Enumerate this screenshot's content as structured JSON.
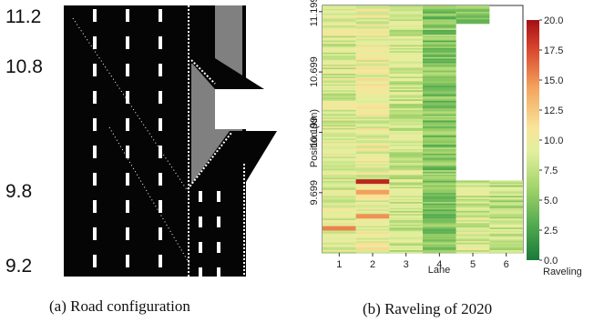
{
  "panel_a": {
    "caption": "(a) Road configuration",
    "y_labels": [
      {
        "text": "11.2",
        "km": 11.2
      },
      {
        "text": "10.8",
        "km": 10.8
      },
      {
        "text": "9.8",
        "km": 9.8
      },
      {
        "text": "9.2",
        "km": 9.2
      }
    ]
  },
  "panel_b": {
    "caption": "(b) Raveling of 2020"
  },
  "colors": {
    "road": "#050505",
    "shoulder": "#808080",
    "marking": "#ffffff",
    "colormap": [
      "#1a7a3a",
      "#4ea84f",
      "#a2d36a",
      "#e2ef9e",
      "#f8e59a",
      "#f3a35c",
      "#d9452e",
      "#a50f15"
    ]
  },
  "chart_data": {
    "type": "heatmap",
    "title": "",
    "xlabel": "Lane",
    "ylabel": "Position (km)",
    "x_categories": [
      "1",
      "2",
      "3",
      "4",
      "5",
      "6"
    ],
    "y_ticks": [
      "11.199",
      "10.699",
      "10.199",
      "9.699"
    ],
    "y_tick_values": [
      11.199,
      10.699,
      10.199,
      9.699
    ],
    "ylim": [
      9.2,
      11.25
    ],
    "colorbar": {
      "label": "Raveling",
      "ticks": [
        "20.0",
        "17.5",
        "15.0",
        "12.5",
        "10.0",
        "7.5",
        "5.0",
        "2.5",
        "0.0"
      ],
      "range": [
        0,
        20
      ]
    },
    "lanes": [
      {
        "lane": "1",
        "from_km": 9.2,
        "to_km": 11.25,
        "mean": 8.6
      },
      {
        "lane": "2",
        "from_km": 9.2,
        "to_km": 11.25,
        "mean": 9.4
      },
      {
        "lane": "3",
        "from_km": 9.2,
        "to_km": 11.25,
        "mean": 8.0
      },
      {
        "lane": "4",
        "from_km": 9.2,
        "to_km": 11.25,
        "mean": 5.0
      },
      {
        "lane": "5",
        "from_km": 9.2,
        "to_km": 9.8,
        "mean": 8.2
      },
      {
        "lane": "5",
        "from_km": 11.1,
        "to_km": 11.25,
        "mean": 5.5
      },
      {
        "lane": "6",
        "from_km": 9.2,
        "to_km": 9.8,
        "mean": 7.2
      }
    ],
    "hotspots": [
      {
        "lane": "2",
        "km": 9.79,
        "value": 19.0
      },
      {
        "lane": "2",
        "km": 9.7,
        "value": 14.5
      },
      {
        "lane": "1",
        "km": 9.4,
        "value": 15.5
      },
      {
        "lane": "2",
        "km": 9.5,
        "value": 15.0
      }
    ]
  }
}
